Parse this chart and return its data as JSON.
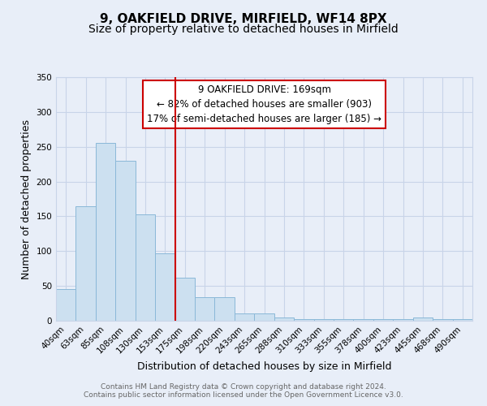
{
  "title": "9, OAKFIELD DRIVE, MIRFIELD, WF14 8PX",
  "subtitle": "Size of property relative to detached houses in Mirfield",
  "xlabel": "Distribution of detached houses by size in Mirfield",
  "ylabel": "Number of detached properties",
  "bar_color": "#cce0f0",
  "bar_edge_color": "#8ab8d8",
  "background_color": "#e8eef8",
  "plot_bg_color": "#e8eef8",
  "categories": [
    "40sqm",
    "63sqm",
    "85sqm",
    "108sqm",
    "130sqm",
    "153sqm",
    "175sqm",
    "198sqm",
    "220sqm",
    "243sqm",
    "265sqm",
    "288sqm",
    "310sqm",
    "333sqm",
    "355sqm",
    "378sqm",
    "400sqm",
    "423sqm",
    "445sqm",
    "468sqm",
    "490sqm"
  ],
  "values": [
    45,
    165,
    255,
    230,
    153,
    97,
    62,
    34,
    34,
    11,
    11,
    5,
    2,
    2,
    2,
    2,
    2,
    2,
    5,
    2,
    2
  ],
  "ylim": [
    0,
    350
  ],
  "yticks": [
    0,
    50,
    100,
    150,
    200,
    250,
    300,
    350
  ],
  "annotation_line1": "9 OAKFIELD DRIVE: 169sqm",
  "annotation_line2": "← 82% of detached houses are smaller (903)",
  "annotation_line3": "17% of semi-detached houses are larger (185) →",
  "footer_line1": "Contains HM Land Registry data © Crown copyright and database right 2024.",
  "footer_line2": "Contains public sector information licensed under the Open Government Licence v3.0.",
  "grid_color": "#c8d4e8",
  "title_fontsize": 11,
  "subtitle_fontsize": 10,
  "axis_label_fontsize": 9,
  "tick_fontsize": 7.5,
  "annotation_fontsize": 8.5,
  "footer_fontsize": 6.5,
  "red_line_x": 5.5
}
